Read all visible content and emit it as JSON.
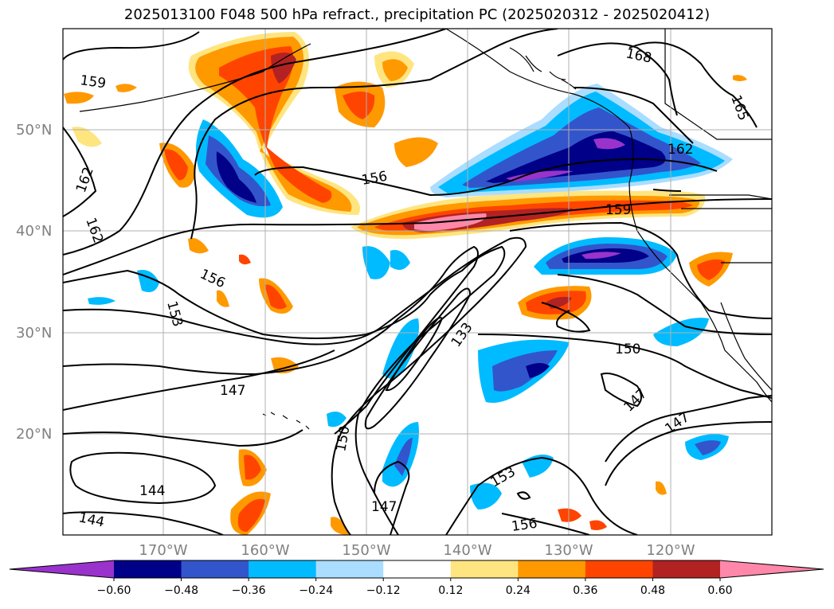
{
  "title": "2025013100 F048 500 hPa refract., precipitation PC (2025020312 - 2025020412)",
  "map": {
    "lat_labels": [
      "50°N",
      "40°N",
      "30°N",
      "20°N"
    ],
    "lon_labels": [
      "170°W",
      "160°W",
      "150°W",
      "140°W",
      "130°W",
      "120°W"
    ]
  },
  "contour_labels": [
    "159",
    "162",
    "162",
    "156",
    "153",
    "147",
    "144",
    "144",
    "156",
    "150",
    "147",
    "153",
    "156",
    "133",
    "150",
    "147",
    "147",
    "168",
    "165",
    "162",
    "159"
  ],
  "colorbar": {
    "colors": [
      "#9933cc",
      "#000088",
      "#3355cc",
      "#00bbff",
      "#aaddff",
      "#ffffff",
      "#ffe580",
      "#ff9900",
      "#ff4400",
      "#b22222",
      "#ff88aa"
    ],
    "tick_labels": [
      "−0.60",
      "−0.48",
      "−0.36",
      "−0.24",
      "−0.12",
      "0.12",
      "0.24",
      "0.36",
      "0.48",
      "0.60"
    ]
  }
}
